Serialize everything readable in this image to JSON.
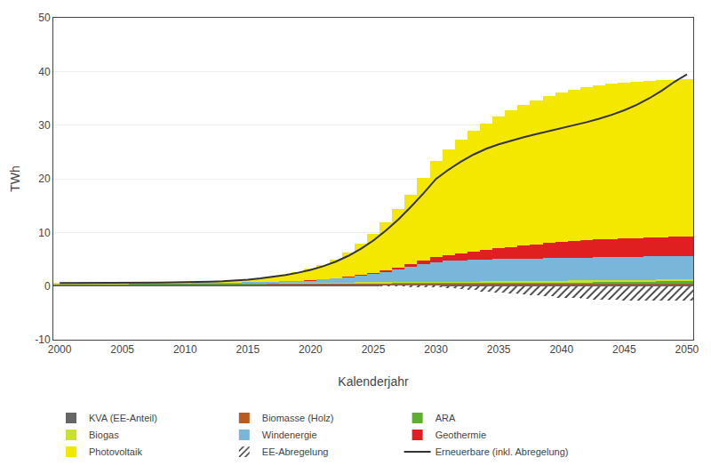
{
  "chart_data": {
    "type": "bar",
    "stacked": true,
    "xlabel": "Kalenderjahr",
    "ylabel": "TWh",
    "x": [
      2000,
      2001,
      2002,
      2003,
      2004,
      2005,
      2006,
      2007,
      2008,
      2009,
      2010,
      2011,
      2012,
      2013,
      2014,
      2015,
      2016,
      2017,
      2018,
      2019,
      2020,
      2021,
      2022,
      2023,
      2024,
      2025,
      2026,
      2027,
      2028,
      2029,
      2030,
      2031,
      2032,
      2033,
      2034,
      2035,
      2036,
      2037,
      2038,
      2039,
      2040,
      2041,
      2042,
      2043,
      2044,
      2045,
      2046,
      2047,
      2048,
      2049,
      2050
    ],
    "xlim": [
      1999.5,
      2050.5
    ],
    "xticks": [
      2000,
      2005,
      2010,
      2015,
      2020,
      2025,
      2030,
      2035,
      2040,
      2045,
      2050
    ],
    "ylim": [
      -10,
      50
    ],
    "yticks": [
      -10,
      0,
      10,
      20,
      30,
      40,
      50
    ],
    "grid": true,
    "legend": "bottom",
    "series": [
      {
        "name": "KVA (EE-Anteil)",
        "color": "#666666",
        "values": [
          0.3,
          0.3,
          0.3,
          0.3,
          0.3,
          0.3,
          0.3,
          0.3,
          0.3,
          0.3,
          0.3,
          0.3,
          0.3,
          0.3,
          0.3,
          0.3,
          0.3,
          0.3,
          0.3,
          0.3,
          0.3,
          0.3,
          0.3,
          0.3,
          0.3,
          0.3,
          0.3,
          0.3,
          0.3,
          0.3,
          0.3,
          0.3,
          0.3,
          0.3,
          0.3,
          0.3,
          0.3,
          0.3,
          0.3,
          0.3,
          0.3,
          0.3,
          0.3,
          0.3,
          0.3,
          0.3,
          0.3,
          0.3,
          0.3,
          0.3,
          0.3
        ]
      },
      {
        "name": "Biomasse (Holz)",
        "color": "#b85c20",
        "values": [
          0.1,
          0.1,
          0.1,
          0.1,
          0.1,
          0.1,
          0.11,
          0.11,
          0.11,
          0.12,
          0.12,
          0.12,
          0.12,
          0.13,
          0.13,
          0.14,
          0.14,
          0.15,
          0.15,
          0.16,
          0.16,
          0.17,
          0.17,
          0.18,
          0.18,
          0.19,
          0.19,
          0.2,
          0.2,
          0.21,
          0.21,
          0.22,
          0.22,
          0.23,
          0.23,
          0.24,
          0.24,
          0.25,
          0.25,
          0.26,
          0.26,
          0.27,
          0.27,
          0.28,
          0.28,
          0.29,
          0.29,
          0.3,
          0.3,
          0.3,
          0.3
        ]
      },
      {
        "name": "ARA",
        "color": "#5cb030",
        "values": [
          0.04,
          0.04,
          0.04,
          0.04,
          0.04,
          0.04,
          0.05,
          0.05,
          0.05,
          0.05,
          0.05,
          0.05,
          0.06,
          0.06,
          0.06,
          0.07,
          0.07,
          0.07,
          0.08,
          0.08,
          0.08,
          0.09,
          0.09,
          0.09,
          0.1,
          0.1,
          0.1,
          0.11,
          0.11,
          0.11,
          0.12,
          0.12,
          0.13,
          0.13,
          0.14,
          0.14,
          0.15,
          0.15,
          0.16,
          0.17,
          0.18,
          0.19,
          0.2,
          0.21,
          0.22,
          0.23,
          0.24,
          0.25,
          0.26,
          0.27,
          0.28
        ]
      },
      {
        "name": "Biogas",
        "color": "#c8e030",
        "values": [
          0.03,
          0.03,
          0.03,
          0.03,
          0.03,
          0.03,
          0.04,
          0.04,
          0.04,
          0.05,
          0.05,
          0.05,
          0.06,
          0.06,
          0.07,
          0.07,
          0.08,
          0.08,
          0.09,
          0.09,
          0.1,
          0.11,
          0.11,
          0.12,
          0.12,
          0.13,
          0.13,
          0.14,
          0.15,
          0.15,
          0.16,
          0.17,
          0.18,
          0.19,
          0.2,
          0.21,
          0.22,
          0.23,
          0.24,
          0.25,
          0.26,
          0.27,
          0.28,
          0.29,
          0.3,
          0.31,
          0.32,
          0.33,
          0.34,
          0.35,
          0.36
        ]
      },
      {
        "name": "Windenergie",
        "color": "#7ab6d9",
        "values": [
          0.05,
          0.05,
          0.05,
          0.05,
          0.06,
          0.06,
          0.06,
          0.07,
          0.07,
          0.08,
          0.08,
          0.09,
          0.1,
          0.11,
          0.13,
          0.15,
          0.18,
          0.22,
          0.28,
          0.36,
          0.46,
          0.6,
          0.78,
          1.0,
          1.28,
          1.6,
          1.97,
          2.38,
          2.82,
          3.28,
          3.7,
          3.9,
          4.0,
          4.05,
          4.1,
          4.12,
          4.14,
          4.16,
          4.18,
          4.2,
          4.22,
          4.24,
          4.26,
          4.28,
          4.3,
          4.32,
          4.34,
          4.36,
          4.38,
          4.4,
          4.42
        ]
      },
      {
        "name": "Geothermie",
        "color": "#e02020",
        "values": [
          0.0,
          0.0,
          0.0,
          0.0,
          0.0,
          0.0,
          0.0,
          0.0,
          0.0,
          0.0,
          0.0,
          0.0,
          0.0,
          0.0,
          0.0,
          0.0,
          0.0,
          0.0,
          0.0,
          0.0,
          0.02,
          0.03,
          0.05,
          0.08,
          0.12,
          0.18,
          0.26,
          0.36,
          0.5,
          0.66,
          0.85,
          1.05,
          1.27,
          1.5,
          1.74,
          1.98,
          2.22,
          2.46,
          2.68,
          2.87,
          3.02,
          3.15,
          3.25,
          3.32,
          3.37,
          3.42,
          3.46,
          3.49,
          3.51,
          3.53,
          3.55
        ]
      },
      {
        "name": "Photovoltaik",
        "color": "#f5e800",
        "values": [
          0.05,
          0.05,
          0.05,
          0.05,
          0.06,
          0.06,
          0.07,
          0.08,
          0.09,
          0.1,
          0.12,
          0.15,
          0.19,
          0.25,
          0.34,
          0.47,
          0.65,
          0.88,
          1.18,
          1.57,
          2.07,
          2.7,
          3.5,
          4.5,
          5.72,
          7.18,
          8.88,
          10.82,
          12.99,
          15.38,
          17.95,
          19.7,
          21.2,
          22.5,
          23.62,
          24.6,
          25.45,
          26.2,
          26.85,
          27.4,
          27.85,
          28.22,
          28.52,
          28.75,
          28.92,
          29.05,
          29.15,
          29.22,
          29.27,
          29.3,
          29.33
        ]
      },
      {
        "name": "EE-Abregelung",
        "color": "#ffffff",
        "marker": "hatch",
        "values": [
          0.0,
          0.0,
          0.0,
          0.0,
          0.0,
          0.0,
          0.0,
          0.0,
          0.0,
          0.0,
          0.0,
          0.0,
          0.0,
          0.0,
          0.0,
          0.0,
          0.0,
          0.0,
          0.0,
          0.0,
          0.0,
          0.0,
          0.0,
          0.0,
          0.0,
          0.0,
          -0.02,
          -0.05,
          -0.1,
          -0.18,
          -0.29,
          -0.44,
          -0.6,
          -0.78,
          -0.97,
          -1.15,
          -1.35,
          -1.55,
          -1.75,
          -1.95,
          -2.13,
          -2.28,
          -2.4,
          -2.5,
          -2.58,
          -2.64,
          -2.68,
          -2.72,
          -2.74,
          -2.76,
          -2.78
        ]
      },
      {
        "name": "Erneuerbare (inkl. Abregelung)",
        "type": "line",
        "color": "#333333",
        "values": [
          0.57,
          0.57,
          0.57,
          0.57,
          0.59,
          0.59,
          0.63,
          0.65,
          0.66,
          0.7,
          0.72,
          0.76,
          0.82,
          0.91,
          1.03,
          1.2,
          1.42,
          1.7,
          2.05,
          2.49,
          3.02,
          3.7,
          4.55,
          5.62,
          6.92,
          8.48,
          10.33,
          12.43,
          14.77,
          17.29,
          19.97,
          21.69,
          23.21,
          24.52,
          25.59,
          26.42,
          27.12,
          27.75,
          28.32,
          28.87,
          29.4,
          29.95,
          30.55,
          31.19,
          31.91,
          32.77,
          33.77,
          35.0,
          36.44,
          38.06,
          39.46
        ]
      }
    ]
  }
}
